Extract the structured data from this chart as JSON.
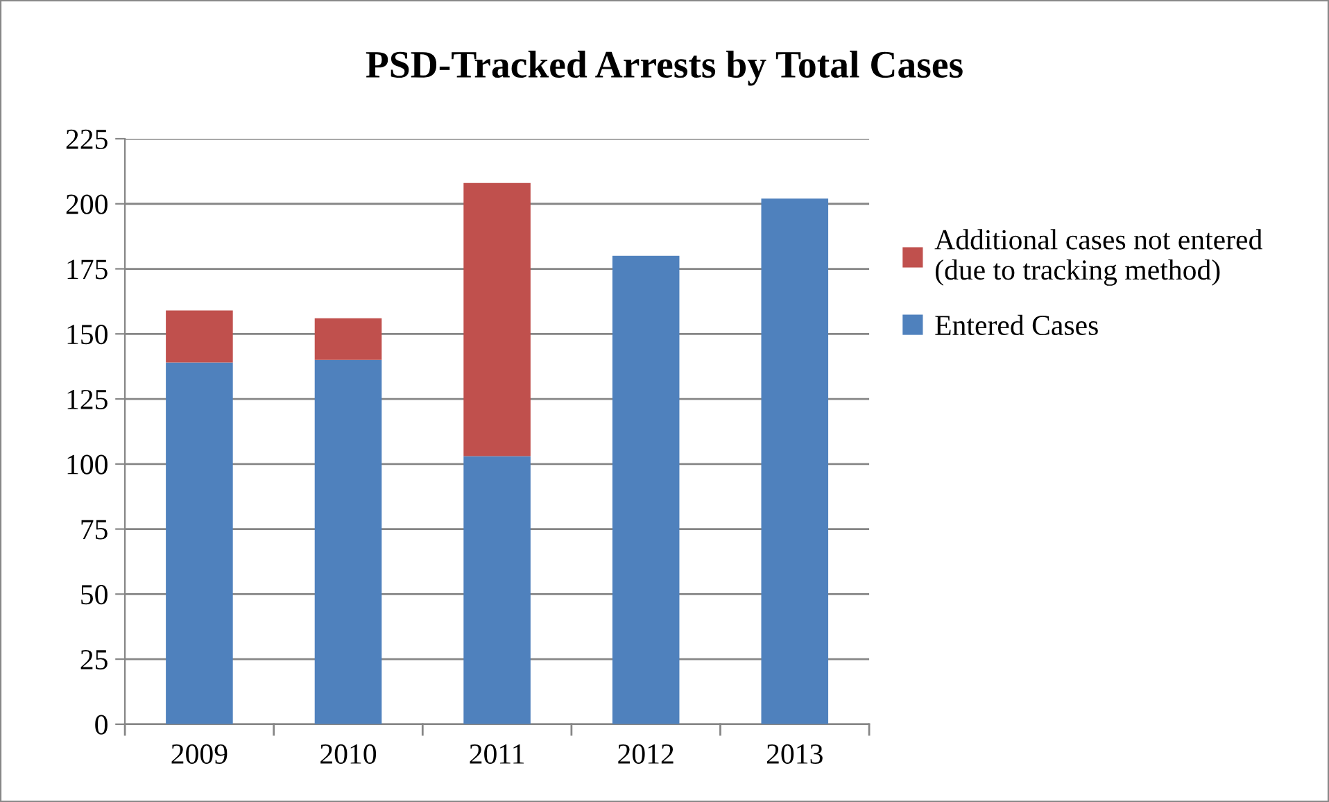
{
  "chart_data": {
    "type": "bar",
    "title": "PSD-Tracked Arrests by Total Cases",
    "categories": [
      "2009",
      "2010",
      "2011",
      "2012",
      "2013"
    ],
    "stacked": true,
    "series": [
      {
        "name": "Entered Cases",
        "color": "#4f81bd",
        "values": [
          139,
          140,
          103,
          180,
          202
        ]
      },
      {
        "name": "Additional cases not entered\n(due to tracking method)",
        "color": "#c0504d",
        "values": [
          20,
          16,
          105,
          null,
          null
        ]
      }
    ],
    "ylim": [
      0,
      225
    ],
    "yticks": [
      0,
      25,
      50,
      75,
      100,
      125,
      150,
      175,
      200,
      225
    ],
    "grid": "y",
    "legend": "right"
  }
}
